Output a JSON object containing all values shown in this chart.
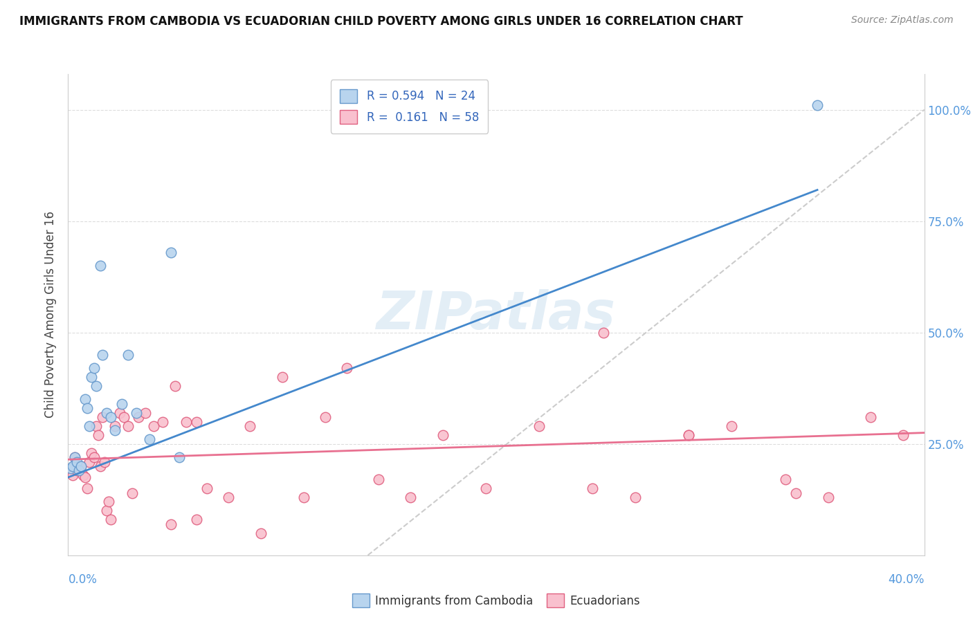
{
  "title": "IMMIGRANTS FROM CAMBODIA VS ECUADORIAN CHILD POVERTY AMONG GIRLS UNDER 16 CORRELATION CHART",
  "source": "Source: ZipAtlas.com",
  "ylabel": "Child Poverty Among Girls Under 16",
  "ytick_labels": [
    "100.0%",
    "75.0%",
    "50.0%",
    "25.0%"
  ],
  "ytick_values": [
    1.0,
    0.75,
    0.5,
    0.25
  ],
  "xlim": [
    0.0,
    0.4
  ],
  "ylim": [
    0.0,
    1.08
  ],
  "legend_r1": "R = 0.594   N = 24",
  "legend_r2": "R =  0.161   N = 58",
  "color_cambodia_fill": "#b8d4ee",
  "color_cambodia_edge": "#6699cc",
  "color_ecuador_fill": "#f9c0ce",
  "color_ecuador_edge": "#e06080",
  "color_line_cambodia": "#4488cc",
  "color_line_ecuador": "#e87090",
  "color_dashed": "#cccccc",
  "watermark": "ZIPatlas",
  "cam_line_x": [
    0.0,
    0.35
  ],
  "cam_line_y": [
    0.175,
    0.82
  ],
  "ecu_line_x": [
    0.0,
    0.4
  ],
  "ecu_line_y": [
    0.215,
    0.275
  ],
  "dash_line_x": [
    0.14,
    0.4
  ],
  "dash_line_y": [
    0.0,
    1.0
  ],
  "cambodia_x": [
    0.001,
    0.002,
    0.003,
    0.004,
    0.005,
    0.006,
    0.008,
    0.009,
    0.01,
    0.011,
    0.012,
    0.013,
    0.015,
    0.016,
    0.018,
    0.02,
    0.022,
    0.025,
    0.028,
    0.032,
    0.038,
    0.048,
    0.052,
    0.35
  ],
  "cambodia_y": [
    0.195,
    0.2,
    0.22,
    0.21,
    0.19,
    0.2,
    0.35,
    0.33,
    0.29,
    0.4,
    0.42,
    0.38,
    0.65,
    0.45,
    0.32,
    0.31,
    0.28,
    0.34,
    0.45,
    0.32,
    0.26,
    0.68,
    0.22,
    1.01
  ],
  "ecuador_x": [
    0.001,
    0.002,
    0.003,
    0.004,
    0.005,
    0.006,
    0.007,
    0.008,
    0.009,
    0.01,
    0.011,
    0.012,
    0.013,
    0.014,
    0.015,
    0.016,
    0.017,
    0.018,
    0.019,
    0.02,
    0.022,
    0.024,
    0.026,
    0.028,
    0.03,
    0.033,
    0.036,
    0.04,
    0.044,
    0.05,
    0.055,
    0.06,
    0.065,
    0.075,
    0.085,
    0.1,
    0.11,
    0.12,
    0.13,
    0.145,
    0.16,
    0.175,
    0.195,
    0.22,
    0.245,
    0.265,
    0.29,
    0.31,
    0.335,
    0.355,
    0.375,
    0.39,
    0.048,
    0.06,
    0.09,
    0.25,
    0.29,
    0.34
  ],
  "ecuador_y": [
    0.195,
    0.18,
    0.22,
    0.19,
    0.195,
    0.2,
    0.18,
    0.175,
    0.15,
    0.21,
    0.23,
    0.22,
    0.29,
    0.27,
    0.2,
    0.31,
    0.21,
    0.1,
    0.12,
    0.08,
    0.29,
    0.32,
    0.31,
    0.29,
    0.14,
    0.31,
    0.32,
    0.29,
    0.3,
    0.38,
    0.3,
    0.3,
    0.15,
    0.13,
    0.29,
    0.4,
    0.13,
    0.31,
    0.42,
    0.17,
    0.13,
    0.27,
    0.15,
    0.29,
    0.15,
    0.13,
    0.27,
    0.29,
    0.17,
    0.13,
    0.31,
    0.27,
    0.07,
    0.08,
    0.05,
    0.5,
    0.27,
    0.14
  ]
}
